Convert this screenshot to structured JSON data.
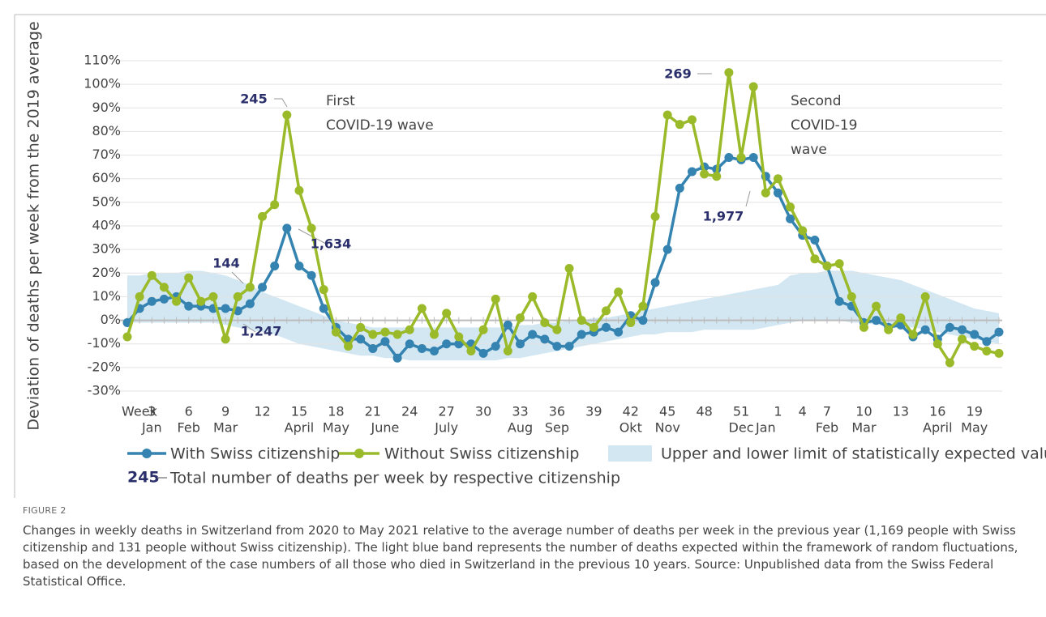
{
  "chart_data": {
    "type": "line",
    "ylabel": "Deviation of deaths per week from the 2019 average",
    "xlabel": "Week",
    "categories": [
      null,
      null,
      "3",
      null,
      null,
      "6",
      null,
      null,
      "9",
      null,
      null,
      "12",
      null,
      null,
      "15",
      null,
      null,
      "18",
      null,
      null,
      "21",
      null,
      null,
      "24",
      null,
      null,
      "27",
      null,
      null,
      "30",
      null,
      null,
      "33",
      null,
      null,
      "36",
      null,
      null,
      "39",
      null,
      null,
      "42",
      null,
      null,
      "45",
      null,
      null,
      "48",
      null,
      null,
      "51",
      null,
      null,
      "1",
      null,
      "4",
      null,
      "7",
      null,
      null,
      "10",
      null,
      null,
      "13",
      null,
      null,
      "16",
      null,
      null,
      "19",
      null,
      null
    ],
    "months": [
      null,
      null,
      "Jan",
      null,
      null,
      "Feb",
      null,
      null,
      "Mar",
      null,
      null,
      null,
      null,
      null,
      "April",
      null,
      null,
      "May",
      null,
      null,
      null,
      "June",
      null,
      null,
      null,
      null,
      "July",
      null,
      null,
      null,
      null,
      null,
      "Aug",
      null,
      null,
      "Sep",
      null,
      null,
      null,
      null,
      null,
      "Okt",
      null,
      null,
      "Nov",
      null,
      null,
      null,
      null,
      null,
      "Dec",
      null,
      "Jan",
      null,
      null,
      null,
      null,
      "Feb",
      null,
      null,
      "Mar",
      null,
      null,
      null,
      null,
      null,
      "April",
      null,
      null,
      "May",
      null,
      null
    ],
    "ylim": [
      -30,
      110
    ],
    "yticks": [
      {
        "value": -30,
        "label": "-30%"
      },
      {
        "value": -20,
        "label": "-20%"
      },
      {
        "value": -10,
        "label": "-10%"
      },
      {
        "value": 0,
        "label": "0%"
      },
      {
        "value": 10,
        "label": "10%"
      },
      {
        "value": 20,
        "label": "20%"
      },
      {
        "value": 30,
        "label": "30%"
      },
      {
        "value": 40,
        "label": "40%"
      },
      {
        "value": 50,
        "label": "50%"
      },
      {
        "value": 60,
        "label": "60%"
      },
      {
        "value": 70,
        "label": "70%"
      },
      {
        "value": 80,
        "label": "80%"
      },
      {
        "value": 90,
        "label": "90%"
      },
      {
        "value": 100,
        "label": "100%"
      },
      {
        "value": 110,
        "label": "110%"
      }
    ],
    "grid": true,
    "band": {
      "name": "Upper and lower limit of statistically expected value",
      "color": "#d3e7f2",
      "upper": [
        19,
        19,
        20,
        20,
        20,
        21,
        21,
        20,
        19,
        17,
        15,
        12,
        10,
        8,
        6,
        4,
        2,
        0,
        -1,
        -2,
        -3,
        -3,
        -3,
        -3,
        -3,
        -3,
        -3,
        -3,
        -3,
        -3,
        -3,
        -3,
        -2,
        -2,
        -1,
        -1,
        0,
        0,
        1,
        1,
        2,
        3,
        4,
        5,
        6,
        7,
        8,
        9,
        10,
        11,
        12,
        13,
        14,
        15,
        19,
        20,
        20,
        21,
        21,
        21,
        20,
        19,
        18,
        17,
        15,
        13,
        11,
        9,
        7,
        5,
        4,
        3
      ],
      "lower": [
        -1,
        -1,
        -1,
        -1,
        -1,
        -1,
        -1,
        -1,
        -2,
        -3,
        -4,
        -5,
        -6,
        -8,
        -10,
        -11,
        -12,
        -13,
        -14,
        -15,
        -15,
        -16,
        -16,
        -17,
        -17,
        -17,
        -17,
        -17,
        -17,
        -17,
        -17,
        -16,
        -16,
        -15,
        -14,
        -13,
        -12,
        -11,
        -10,
        -9,
        -8,
        -7,
        -6,
        -6,
        -5,
        -5,
        -5,
        -4,
        -4,
        -4,
        -4,
        -4,
        -3,
        -2,
        -1,
        0,
        0,
        0,
        0,
        -1,
        -1,
        -2,
        -2,
        -3,
        -3,
        -4,
        -5,
        -6,
        -7,
        -8,
        -9,
        -10
      ]
    },
    "series": [
      {
        "name": "With Swiss citizenship",
        "color": "#3483b0",
        "values": [
          -1,
          5,
          8,
          9,
          10,
          6,
          6,
          5,
          5,
          4,
          7,
          14,
          23,
          39,
          23,
          19,
          5,
          -3,
          -8,
          -8,
          -12,
          -9,
          -16,
          -10,
          -12,
          -13,
          -10,
          -10,
          -10,
          -14,
          -11,
          -2,
          -10,
          -6,
          -8,
          -11,
          -11,
          -6,
          -5,
          -3,
          -5,
          2,
          0,
          16,
          30,
          56,
          63,
          65,
          64,
          69,
          68,
          69,
          61,
          54,
          43,
          36,
          34,
          23,
          8,
          6,
          -1,
          0,
          -3,
          -2,
          -7,
          -4,
          -8,
          -3,
          -4,
          -6,
          -9,
          -5
        ]
      },
      {
        "name": "Without Swiss citizenship",
        "color": "#9bba2a",
        "values": [
          -7,
          10,
          19,
          14,
          8,
          18,
          8,
          10,
          -8,
          10,
          14,
          44,
          49,
          87,
          55,
          39,
          13,
          -5,
          -11,
          -3,
          -6,
          -5,
          -6,
          -4,
          5,
          -6,
          3,
          -7,
          -13,
          -4,
          9,
          -13,
          1,
          10,
          -1,
          -4,
          22,
          0,
          -3,
          4,
          12,
          -1,
          6,
          44,
          87,
          83,
          85,
          62,
          61,
          105,
          69,
          99,
          54,
          60,
          48,
          38,
          26,
          23,
          24,
          10,
          -3,
          6,
          -4,
          1,
          -6,
          10,
          -10,
          -18,
          -8,
          -11,
          -13,
          -14
        ]
      }
    ],
    "annotations": [
      "245",
      "144",
      "1,247",
      "1,634",
      "269",
      "1,977"
    ],
    "wave_labels": [
      [
        "First",
        "COVID-19 wave"
      ],
      [
        "Second",
        "COVID-19",
        "wave"
      ]
    ],
    "legend_note": {
      "number": "245",
      "text": "Total number of deaths per week by respective citizenship"
    }
  },
  "figure": {
    "label": "FIGURE 2",
    "caption": "Changes in weekly deaths in Switzerland from 2020 to May 2021 relative to the average number of deaths per week in the previous year (1,169 people with Swiss citizenship and 131 people without Swiss citizenship). The light blue band represents the number of deaths expected within the framework of random fluctuations, based on the development of the case numbers of all those who died in Switzerland in the previous 10 years. Source: Unpublished data from the Swiss Federal Statistical Office."
  }
}
